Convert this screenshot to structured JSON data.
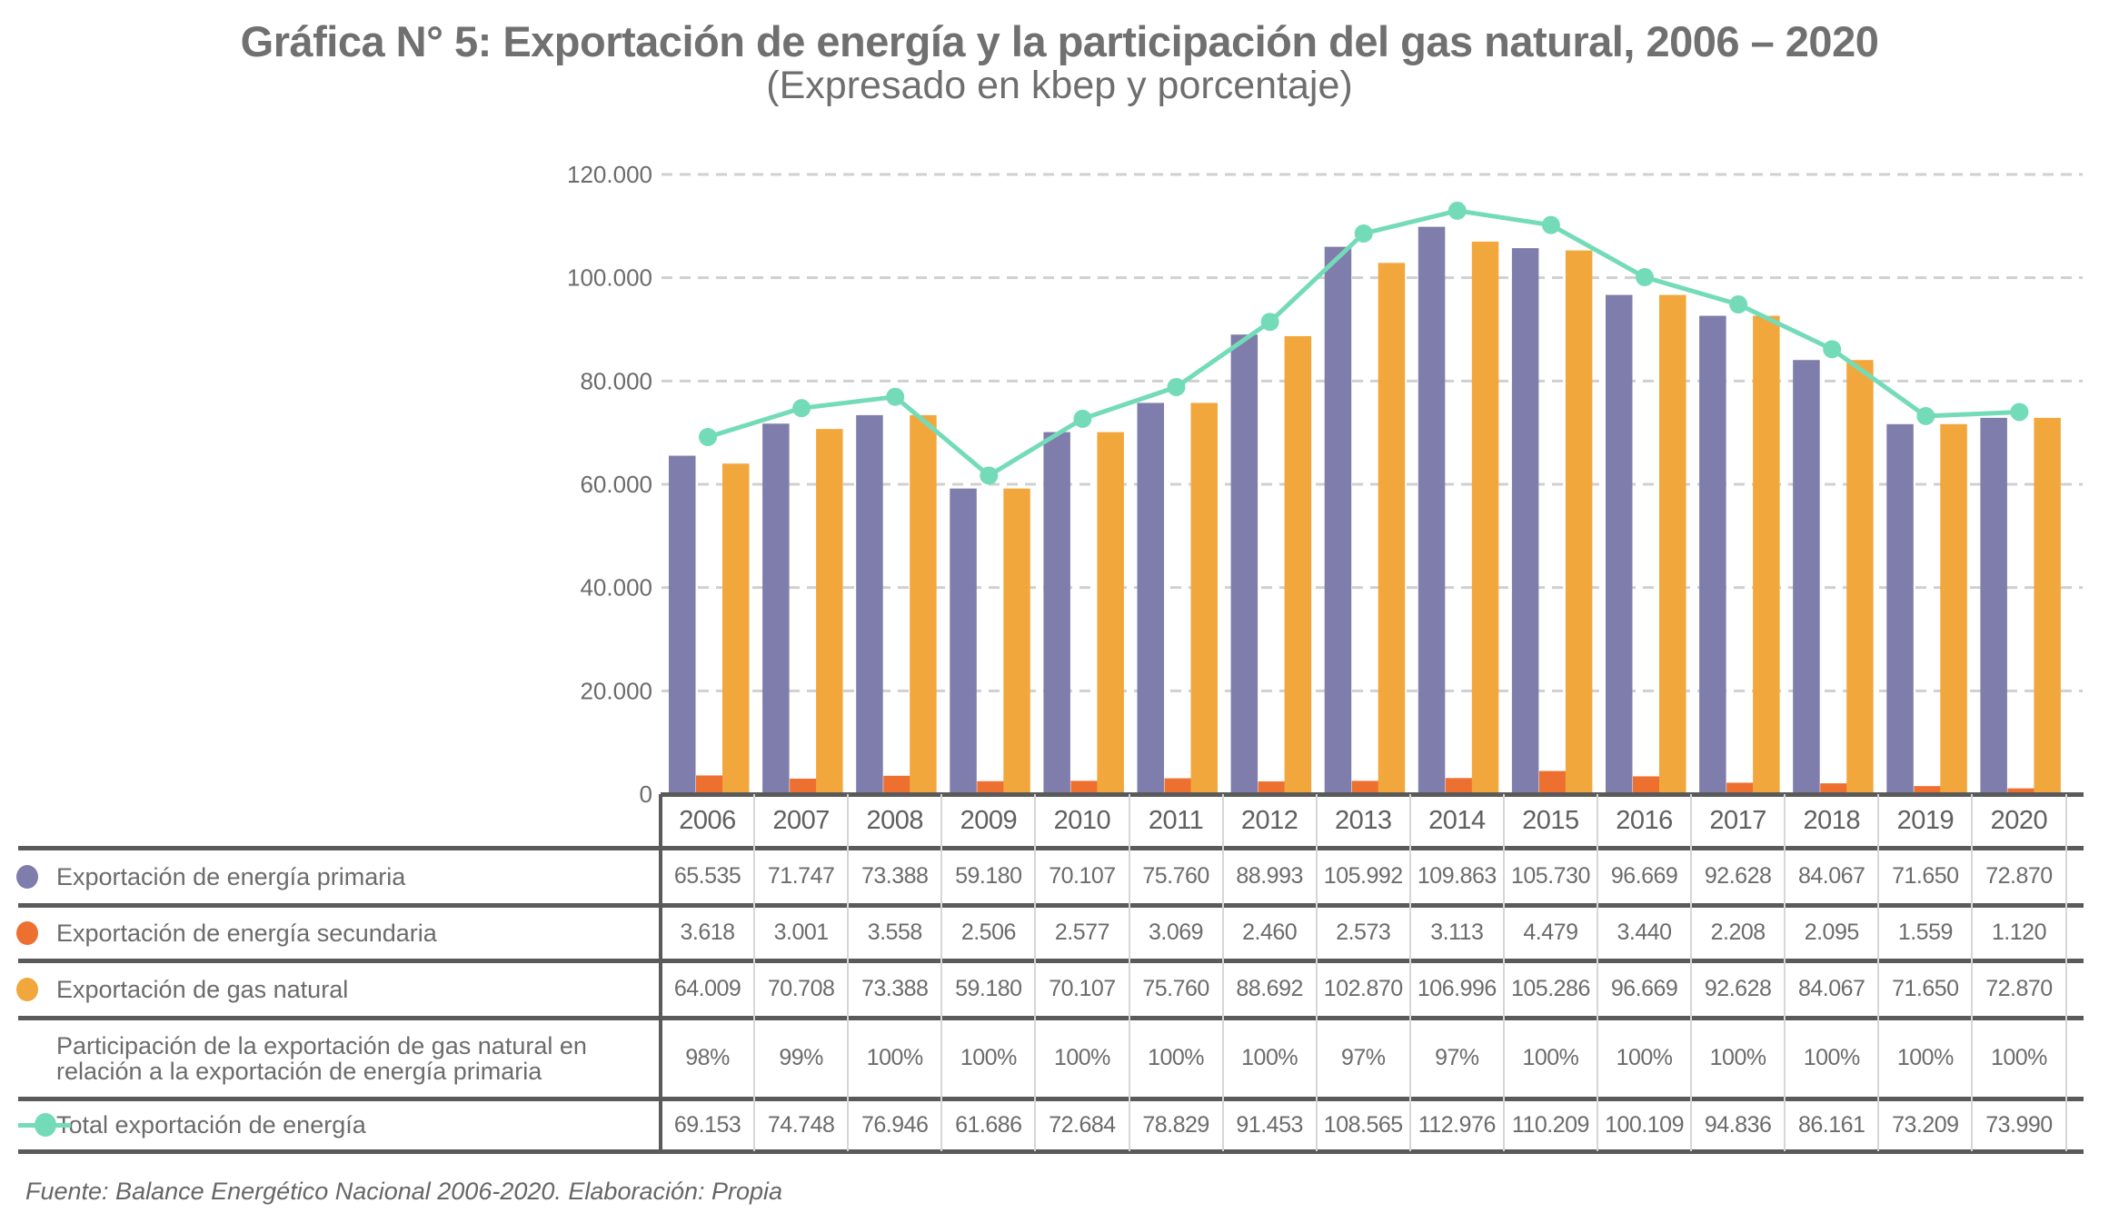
{
  "title": "Gráfica N° 5: Exportación de energía y la participación del gas natural, 2006 – 2020",
  "subtitle": "(Expresado en kbep y porcentaje)",
  "source": "Fuente: Balance Energético Nacional 2006-2020. Elaboración: Propia",
  "colors": {
    "primaria": "#7f7dab",
    "secundaria": "#ee7031",
    "gas": "#f2a73d",
    "total": "#74dbb9",
    "grid": "#d0d0d0",
    "text": "#6b6b6b"
  },
  "chart_data": {
    "type": "bar",
    "title": "Gráfica N° 5: Exportación de energía y la participación del gas natural, 2006 – 2020",
    "subtitle": "(Expresado en kbep y porcentaje)",
    "xlabel": "",
    "ylabel": "",
    "ylim": [
      0,
      120000
    ],
    "yticks": [
      0,
      20000,
      40000,
      60000,
      80000,
      100000,
      120000
    ],
    "ytick_labels": [
      "0",
      "20.000",
      "40.000",
      "60.000",
      "80.000",
      "100.000",
      "120.000"
    ],
    "grid": true,
    "legend": "table-left",
    "categories": [
      "2006",
      "2007",
      "2008",
      "2009",
      "2010",
      "2011",
      "2012",
      "2013",
      "2014",
      "2015",
      "2016",
      "2017",
      "2018",
      "2019",
      "2020"
    ],
    "series": [
      {
        "name": "Exportación de energía primaria",
        "kind": "bar",
        "color": "#7f7dab",
        "values": [
          65535,
          71747,
          73388,
          59180,
          70107,
          75760,
          88993,
          105992,
          109863,
          105730,
          96669,
          92628,
          84067,
          71650,
          72870
        ],
        "labels": [
          "65.535",
          "71.747",
          "73.388",
          "59.180",
          "70.107",
          "75.760",
          "88.993",
          "105.992",
          "109.863",
          "105.730",
          "96.669",
          "92.628",
          "84.067",
          "71.650",
          "72.870"
        ]
      },
      {
        "name": "Exportación de energía secundaria",
        "kind": "bar",
        "color": "#ee7031",
        "values": [
          3618,
          3001,
          3558,
          2506,
          2577,
          3069,
          2460,
          2573,
          3113,
          4479,
          3440,
          2208,
          2095,
          1559,
          1120
        ],
        "labels": [
          "3.618",
          "3.001",
          "3.558",
          "2.506",
          "2.577",
          "3.069",
          "2.460",
          "2.573",
          "3.113",
          "4.479",
          "3.440",
          "2.208",
          "2.095",
          "1.559",
          "1.120"
        ]
      },
      {
        "name": "Exportación de gas natural",
        "kind": "bar",
        "color": "#f2a73d",
        "values": [
          64009,
          70708,
          73388,
          59180,
          70107,
          75760,
          88692,
          102870,
          106996,
          105286,
          96669,
          92628,
          84067,
          71650,
          72870
        ],
        "labels": [
          "64.009",
          "70.708",
          "73.388",
          "59.180",
          "70.107",
          "75.760",
          "88.692",
          "102.870",
          "106.996",
          "105.286",
          "96.669",
          "92.628",
          "84.067",
          "71.650",
          "72.870"
        ]
      },
      {
        "name": "Participación de la exportación de gas natural en relación a la exportación de energía primaria",
        "kind": "table-only",
        "values": [
          98,
          99,
          100,
          100,
          100,
          100,
          100,
          97,
          97,
          100,
          100,
          100,
          100,
          100,
          100
        ],
        "labels": [
          "98%",
          "99%",
          "100%",
          "100%",
          "100%",
          "100%",
          "100%",
          "97%",
          "97%",
          "100%",
          "100%",
          "100%",
          "100%",
          "100%",
          "100%"
        ]
      },
      {
        "name": "Total exportación de energía",
        "kind": "line",
        "color": "#74dbb9",
        "values": [
          69153,
          74748,
          76946,
          61686,
          72684,
          78829,
          91453,
          108565,
          112976,
          110209,
          100109,
          94836,
          86161,
          73209,
          73990
        ],
        "labels": [
          "69.153",
          "74.748",
          "76.946",
          "61.686",
          "72.684",
          "78.829",
          "91.453",
          "108.565",
          "112.976",
          "110.209",
          "100.109",
          "94.836",
          "86.161",
          "73.209",
          "73.990"
        ]
      }
    ]
  }
}
